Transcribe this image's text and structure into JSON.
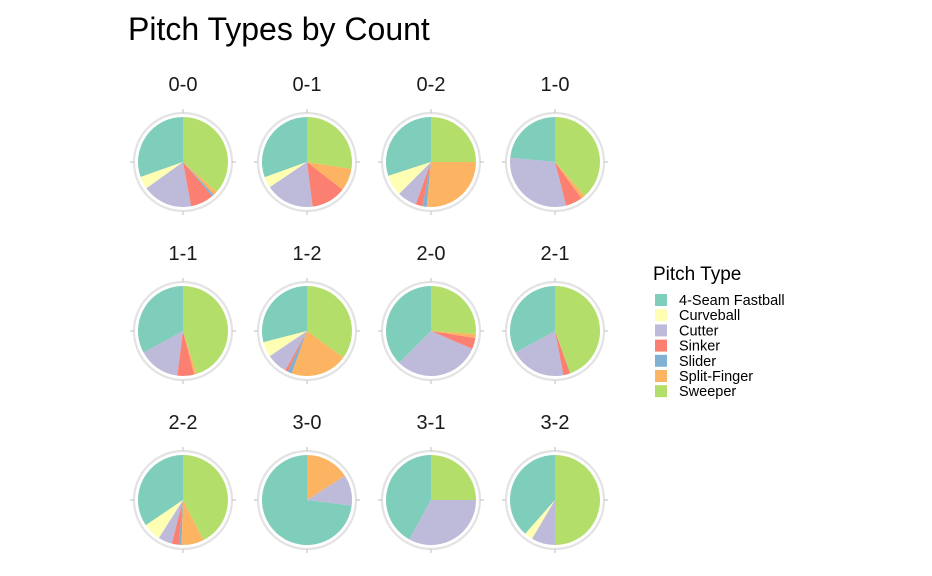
{
  "chart_data": {
    "type": "pie",
    "title": "Pitch Types by Count",
    "legend": {
      "title": "Pitch Type",
      "position": "right",
      "items": [
        {
          "name": "4-Seam Fastball",
          "color": "#7FCDBB"
        },
        {
          "name": "Curveball",
          "color": "#FFFFB3"
        },
        {
          "name": "Cutter",
          "color": "#BEBADA"
        },
        {
          "name": "Sinker",
          "color": "#FB8072"
        },
        {
          "name": "Slider",
          "color": "#80B1D3"
        },
        {
          "name": "Split-Finger",
          "color": "#FDB462"
        },
        {
          "name": "Sweeper",
          "color": "#B3DE69"
        }
      ]
    },
    "pitch_types": [
      "4-Seam Fastball",
      "Curveball",
      "Cutter",
      "Sinker",
      "Slider",
      "Split-Finger",
      "Sweeper"
    ],
    "facets": [
      {
        "label": "0-0",
        "shares": [
          0.304,
          0.045,
          0.18,
          0.083,
          0.008,
          0.015,
          0.365
        ]
      },
      {
        "label": "0-1",
        "shares": [
          0.305,
          0.04,
          0.175,
          0.125,
          0.0,
          0.08,
          0.275
        ]
      },
      {
        "label": "0-2",
        "shares": [
          0.3,
          0.075,
          0.07,
          0.025,
          0.015,
          0.265,
          0.25
        ]
      },
      {
        "label": "1-0",
        "shares": [
          0.235,
          0.0,
          0.305,
          0.06,
          0.0,
          0.015,
          0.385
        ]
      },
      {
        "label": "1-1",
        "shares": [
          0.33,
          0.0,
          0.15,
          0.06,
          0.0,
          0.01,
          0.45
        ]
      },
      {
        "label": "1-2",
        "shares": [
          0.29,
          0.055,
          0.075,
          0.01,
          0.015,
          0.205,
          0.35
        ]
      },
      {
        "label": "2-0",
        "shares": [
          0.375,
          0.0,
          0.31,
          0.04,
          0.0,
          0.015,
          0.26
        ]
      },
      {
        "label": "2-1",
        "shares": [
          0.33,
          0.0,
          0.2,
          0.025,
          0.0,
          0.0,
          0.445
        ]
      },
      {
        "label": "2-2",
        "shares": [
          0.345,
          0.065,
          0.05,
          0.025,
          0.01,
          0.08,
          0.425
        ]
      },
      {
        "label": "3-0",
        "shares": [
          0.73,
          0.0,
          0.11,
          0.0,
          0.0,
          0.16,
          0.0
        ]
      },
      {
        "label": "3-1",
        "shares": [
          0.42,
          0.0,
          0.33,
          0.0,
          0.0,
          0.0,
          0.25
        ]
      },
      {
        "label": "3-2",
        "shares": [
          0.385,
          0.03,
          0.085,
          0.0,
          0.0,
          0.0,
          0.5
        ]
      }
    ],
    "grid": true
  }
}
